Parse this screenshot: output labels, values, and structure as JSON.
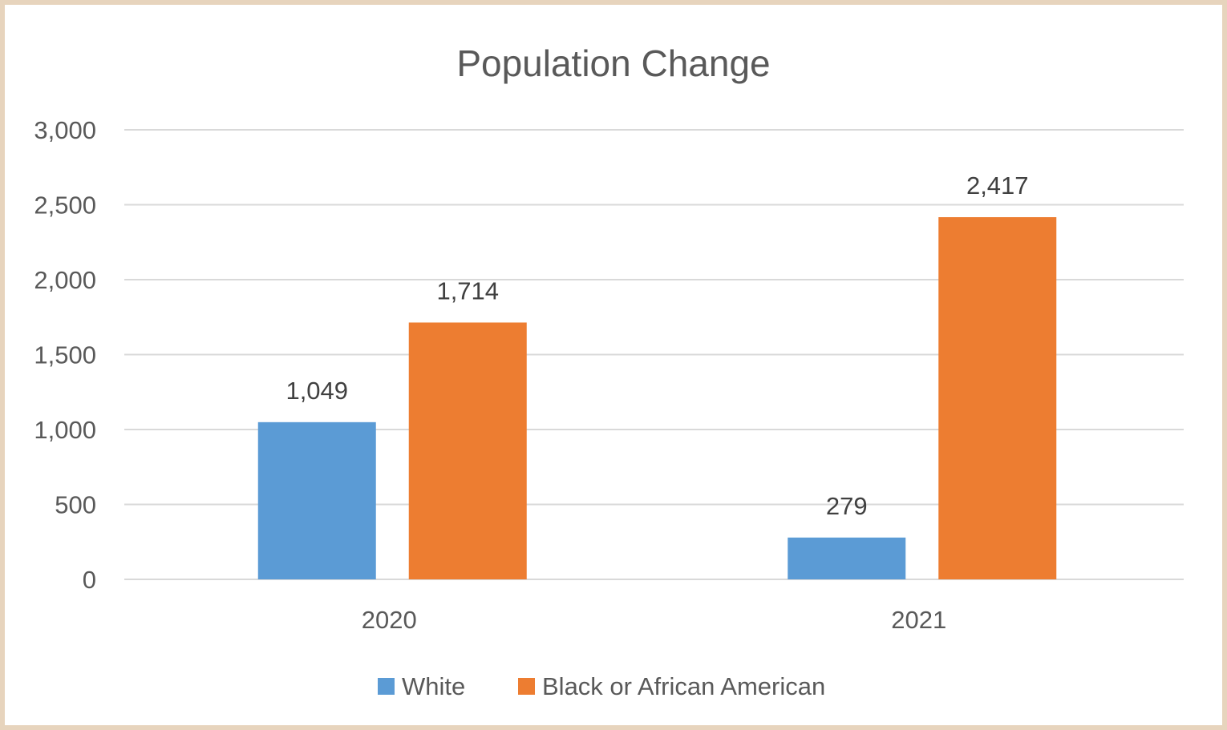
{
  "chart_data": {
    "type": "bar",
    "title": "Population Change",
    "xlabel": "",
    "ylabel": "",
    "categories": [
      "2020",
      "2021"
    ],
    "series": [
      {
        "name": "White",
        "values": [
          1049,
          279
        ],
        "labels": [
          "1,049",
          "279"
        ],
        "color": "#5b9bd5"
      },
      {
        "name": "Black or African American",
        "values": [
          1714,
          2417
        ],
        "labels": [
          "1,714",
          "2,417"
        ],
        "color": "#ed7d31"
      }
    ],
    "ylim": [
      0,
      3000
    ],
    "yticks": [
      0,
      500,
      1000,
      1500,
      2000,
      2500,
      3000
    ],
    "ytick_labels": [
      "0",
      "500",
      "1,000",
      "1,500",
      "2,000",
      "2,500",
      "3,000"
    ],
    "grid": true,
    "legend": "bottom"
  },
  "colors": {
    "background": "#ffffff",
    "border": "#e7d4bd",
    "gridline": "#d9d9d9",
    "text": "#595959"
  }
}
